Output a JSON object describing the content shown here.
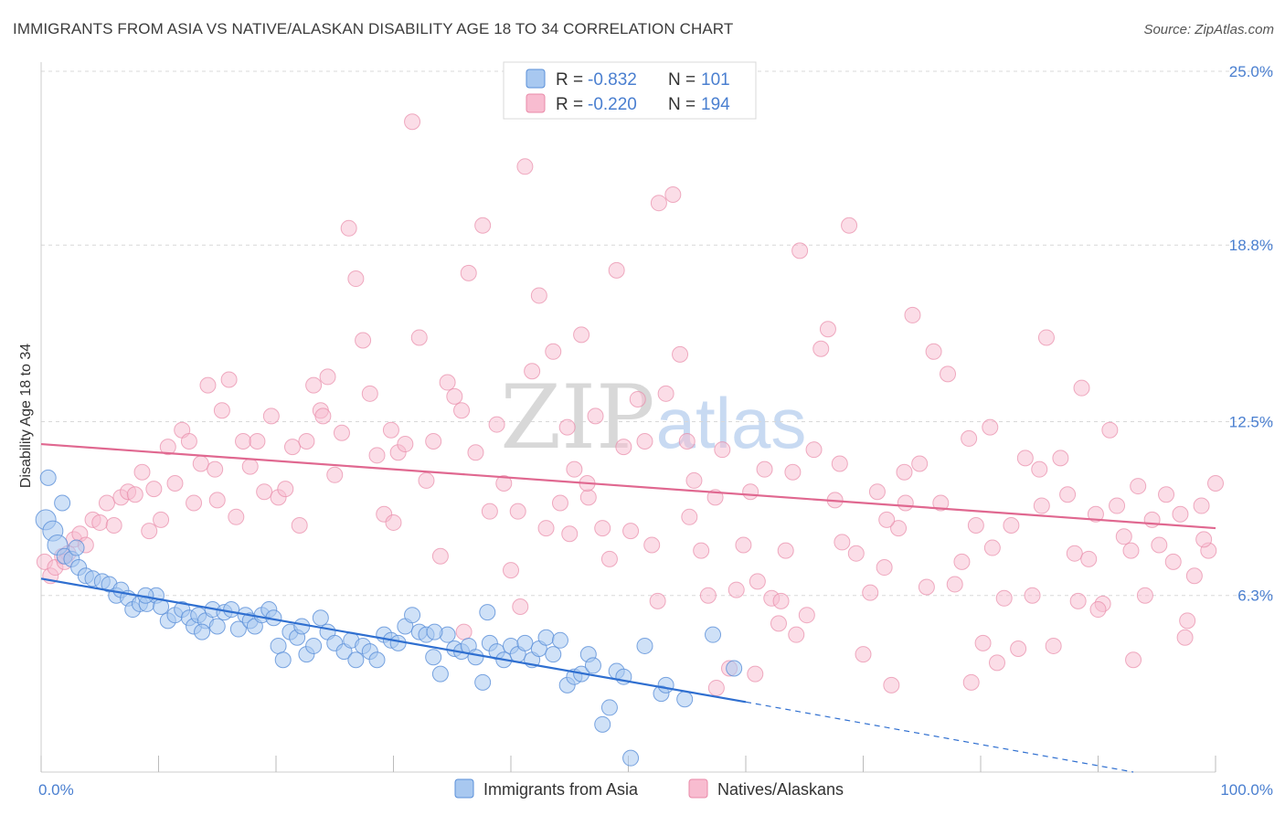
{
  "title": "IMMIGRANTS FROM ASIA VS NATIVE/ALASKAN DISABILITY AGE 18 TO 34 CORRELATION CHART",
  "source": "Source: ZipAtlas.com",
  "watermark": {
    "zip": "ZIP",
    "atlas": "atlas"
  },
  "colors": {
    "series1_fill": "#a8c8f0",
    "series1_stroke": "#5a8fd8",
    "series1_line": "#2f6fd0",
    "series2_fill": "#f8bcd0",
    "series2_stroke": "#e88aa8",
    "series2_line": "#e06890",
    "axis_text": "#4a7fd0",
    "grid": "#d8d8d8"
  },
  "legend": {
    "items": [
      {
        "r_label": "R = ",
        "r_value": "-0.832",
        "n_label": "N = ",
        "n_value": "101"
      },
      {
        "r_label": "R = ",
        "r_value": "-0.220",
        "n_label": "N = ",
        "n_value": "194"
      }
    ]
  },
  "chart_data": {
    "type": "scatter",
    "title": "IMMIGRANTS FROM ASIA VS NATIVE/ALASKAN DISABILITY AGE 18 TO 34 CORRELATION CHART",
    "xlabel": "",
    "ylabel": "Disability Age 18 to 34",
    "xlim": [
      0,
      100
    ],
    "ylim": [
      0,
      25
    ],
    "x_tick_labels": [
      "0.0%",
      "100.0%"
    ],
    "y_ticks": [
      6.3,
      12.5,
      18.8,
      25.0
    ],
    "y_tick_labels": [
      "6.3%",
      "12.5%",
      "18.8%",
      "25.0%"
    ],
    "grid": true,
    "legend_position": "top-center",
    "series": [
      {
        "name": "Immigrants from Asia",
        "trend": {
          "x0": 0,
          "y0": 6.9,
          "x1": 60,
          "y1": 2.5,
          "dashed_to_x": 93,
          "dashed_to_y": 0.0
        },
        "points": [
          [
            0.4,
            9.0
          ],
          [
            1.0,
            8.6
          ],
          [
            1.4,
            8.1
          ],
          [
            2.0,
            7.7
          ],
          [
            2.6,
            7.6
          ],
          [
            3.2,
            7.3
          ],
          [
            3.8,
            7.0
          ],
          [
            4.4,
            6.9
          ],
          [
            5.2,
            6.8
          ],
          [
            5.8,
            6.7
          ],
          [
            6.4,
            6.3
          ],
          [
            6.8,
            6.5
          ],
          [
            7.4,
            6.2
          ],
          [
            7.8,
            5.8
          ],
          [
            8.4,
            6.0
          ],
          [
            9.0,
            6.0
          ],
          [
            9.8,
            6.3
          ],
          [
            10.2,
            5.9
          ],
          [
            10.8,
            5.4
          ],
          [
            11.4,
            5.6
          ],
          [
            12.0,
            5.8
          ],
          [
            12.6,
            5.5
          ],
          [
            13.0,
            5.2
          ],
          [
            13.4,
            5.6
          ],
          [
            14.0,
            5.4
          ],
          [
            14.6,
            5.8
          ],
          [
            15.0,
            5.2
          ],
          [
            15.6,
            5.7
          ],
          [
            16.2,
            5.8
          ],
          [
            16.8,
            5.1
          ],
          [
            17.4,
            5.6
          ],
          [
            17.8,
            5.4
          ],
          [
            18.2,
            5.2
          ],
          [
            18.8,
            5.6
          ],
          [
            19.4,
            5.8
          ],
          [
            20.2,
            4.5
          ],
          [
            20.6,
            4.0
          ],
          [
            21.2,
            5.0
          ],
          [
            21.8,
            4.8
          ],
          [
            22.2,
            5.2
          ],
          [
            22.6,
            4.2
          ],
          [
            23.2,
            4.5
          ],
          [
            23.8,
            5.5
          ],
          [
            24.4,
            5.0
          ],
          [
            25.0,
            4.6
          ],
          [
            25.8,
            4.3
          ],
          [
            26.4,
            4.7
          ],
          [
            26.8,
            4.0
          ],
          [
            27.4,
            4.5
          ],
          [
            28.0,
            4.3
          ],
          [
            28.6,
            4.0
          ],
          [
            29.2,
            4.9
          ],
          [
            29.8,
            4.7
          ],
          [
            30.4,
            4.6
          ],
          [
            31.0,
            5.2
          ],
          [
            31.6,
            5.6
          ],
          [
            32.2,
            5.0
          ],
          [
            32.8,
            4.9
          ],
          [
            33.4,
            4.1
          ],
          [
            34.0,
            3.5
          ],
          [
            34.6,
            4.9
          ],
          [
            35.2,
            4.4
          ],
          [
            35.8,
            4.3
          ],
          [
            36.4,
            4.5
          ],
          [
            37.0,
            4.1
          ],
          [
            37.6,
            3.2
          ],
          [
            38.2,
            4.6
          ],
          [
            38.8,
            4.3
          ],
          [
            39.4,
            4.0
          ],
          [
            40.0,
            4.5
          ],
          [
            40.6,
            4.2
          ],
          [
            41.2,
            4.6
          ],
          [
            41.8,
            4.0
          ],
          [
            42.4,
            4.4
          ],
          [
            43.0,
            4.8
          ],
          [
            43.6,
            4.2
          ],
          [
            44.2,
            4.7
          ],
          [
            44.8,
            3.1
          ],
          [
            45.4,
            3.4
          ],
          [
            46.0,
            3.5
          ],
          [
            46.6,
            4.2
          ],
          [
            47.0,
            3.8
          ],
          [
            47.8,
            1.7
          ],
          [
            48.4,
            2.3
          ],
          [
            49.0,
            3.6
          ],
          [
            49.6,
            3.4
          ],
          [
            50.2,
            0.5
          ],
          [
            51.4,
            4.5
          ],
          [
            52.8,
            2.8
          ],
          [
            53.2,
            3.1
          ],
          [
            54.8,
            2.6
          ],
          [
            57.2,
            4.9
          ],
          [
            59.0,
            3.7
          ],
          [
            0.6,
            10.5
          ],
          [
            1.8,
            9.6
          ],
          [
            3.0,
            8.0
          ],
          [
            8.9,
            6.3
          ],
          [
            13.7,
            5.0
          ],
          [
            19.8,
            5.5
          ],
          [
            38.0,
            5.7
          ],
          [
            33.5,
            5.0
          ]
        ]
      },
      {
        "name": "Natives/Alaskans",
        "trend": {
          "x0": 0,
          "y0": 11.7,
          "x1": 100,
          "y1": 8.7
        },
        "points": [
          [
            0.3,
            7.5
          ],
          [
            0.8,
            7.0
          ],
          [
            1.2,
            7.3
          ],
          [
            1.8,
            7.7
          ],
          [
            2.3,
            7.8
          ],
          [
            2.8,
            8.3
          ],
          [
            3.3,
            8.5
          ],
          [
            3.8,
            8.1
          ],
          [
            4.4,
            9.0
          ],
          [
            5.0,
            8.9
          ],
          [
            5.6,
            9.6
          ],
          [
            6.2,
            8.8
          ],
          [
            6.8,
            9.8
          ],
          [
            7.4,
            10.0
          ],
          [
            8.0,
            9.9
          ],
          [
            8.6,
            10.7
          ],
          [
            9.2,
            8.6
          ],
          [
            9.6,
            10.1
          ],
          [
            10.2,
            9.0
          ],
          [
            10.8,
            11.6
          ],
          [
            11.4,
            10.3
          ],
          [
            12.0,
            12.2
          ],
          [
            12.6,
            11.8
          ],
          [
            13.0,
            9.6
          ],
          [
            13.6,
            11.0
          ],
          [
            14.2,
            13.8
          ],
          [
            14.8,
            10.8
          ],
          [
            15.4,
            12.9
          ],
          [
            16.0,
            14.0
          ],
          [
            16.6,
            9.1
          ],
          [
            17.2,
            11.8
          ],
          [
            17.8,
            10.9
          ],
          [
            18.4,
            11.8
          ],
          [
            19.0,
            10.0
          ],
          [
            19.6,
            12.7
          ],
          [
            20.2,
            9.8
          ],
          [
            20.8,
            10.1
          ],
          [
            21.4,
            11.6
          ],
          [
            22.0,
            8.8
          ],
          [
            22.6,
            11.8
          ],
          [
            23.2,
            13.8
          ],
          [
            23.8,
            12.9
          ],
          [
            24.4,
            14.1
          ],
          [
            25.0,
            10.6
          ],
          [
            25.6,
            12.1
          ],
          [
            26.2,
            19.4
          ],
          [
            26.8,
            17.6
          ],
          [
            27.4,
            15.4
          ],
          [
            28.0,
            13.5
          ],
          [
            28.6,
            11.3
          ],
          [
            29.2,
            9.2
          ],
          [
            29.8,
            12.2
          ],
          [
            30.4,
            11.4
          ],
          [
            31.0,
            11.7
          ],
          [
            31.6,
            23.2
          ],
          [
            32.2,
            15.5
          ],
          [
            32.8,
            10.4
          ],
          [
            33.4,
            11.8
          ],
          [
            34.0,
            7.7
          ],
          [
            34.6,
            13.9
          ],
          [
            35.2,
            13.4
          ],
          [
            35.8,
            12.9
          ],
          [
            36.4,
            17.8
          ],
          [
            37.0,
            11.4
          ],
          [
            37.6,
            19.5
          ],
          [
            38.2,
            9.3
          ],
          [
            38.8,
            12.4
          ],
          [
            39.4,
            10.3
          ],
          [
            40.0,
            7.2
          ],
          [
            40.6,
            9.3
          ],
          [
            41.2,
            21.6
          ],
          [
            41.8,
            14.3
          ],
          [
            42.4,
            17.0
          ],
          [
            43.0,
            8.7
          ],
          [
            43.6,
            15.0
          ],
          [
            44.2,
            9.6
          ],
          [
            44.8,
            12.3
          ],
          [
            45.4,
            10.8
          ],
          [
            46.0,
            15.6
          ],
          [
            46.6,
            9.8
          ],
          [
            47.2,
            12.7
          ],
          [
            47.8,
            8.7
          ],
          [
            48.4,
            7.6
          ],
          [
            49.0,
            17.9
          ],
          [
            49.6,
            11.6
          ],
          [
            50.2,
            8.6
          ],
          [
            50.8,
            13.3
          ],
          [
            51.4,
            11.8
          ],
          [
            52.0,
            8.1
          ],
          [
            52.6,
            20.3
          ],
          [
            53.2,
            13.5
          ],
          [
            53.8,
            20.6
          ],
          [
            54.4,
            14.9
          ],
          [
            55.0,
            11.8
          ],
          [
            55.6,
            10.4
          ],
          [
            56.2,
            7.9
          ],
          [
            56.8,
            6.3
          ],
          [
            57.4,
            9.8
          ],
          [
            58.0,
            11.5
          ],
          [
            58.6,
            3.7
          ],
          [
            59.2,
            6.5
          ],
          [
            59.8,
            8.1
          ],
          [
            60.4,
            10.0
          ],
          [
            61.0,
            6.8
          ],
          [
            61.6,
            10.8
          ],
          [
            62.2,
            6.2
          ],
          [
            62.8,
            5.3
          ],
          [
            63.4,
            7.9
          ],
          [
            64.0,
            10.7
          ],
          [
            64.6,
            18.6
          ],
          [
            65.2,
            5.6
          ],
          [
            65.8,
            11.5
          ],
          [
            66.4,
            15.1
          ],
          [
            67.0,
            15.8
          ],
          [
            67.6,
            9.7
          ],
          [
            68.2,
            8.2
          ],
          [
            68.8,
            19.5
          ],
          [
            69.4,
            7.8
          ],
          [
            70.0,
            4.2
          ],
          [
            70.6,
            6.4
          ],
          [
            71.2,
            10.0
          ],
          [
            71.8,
            7.3
          ],
          [
            72.4,
            3.1
          ],
          [
            73.0,
            8.7
          ],
          [
            73.6,
            9.6
          ],
          [
            74.2,
            16.3
          ],
          [
            74.8,
            11.0
          ],
          [
            75.4,
            6.6
          ],
          [
            76.0,
            15.0
          ],
          [
            76.6,
            9.6
          ],
          [
            77.2,
            14.2
          ],
          [
            77.8,
            6.7
          ],
          [
            78.4,
            7.5
          ],
          [
            79.0,
            11.9
          ],
          [
            79.6,
            8.8
          ],
          [
            80.2,
            4.6
          ],
          [
            80.8,
            12.3
          ],
          [
            81.4,
            3.9
          ],
          [
            82.0,
            6.2
          ],
          [
            82.6,
            8.8
          ],
          [
            83.2,
            4.4
          ],
          [
            83.8,
            11.2
          ],
          [
            84.4,
            6.3
          ],
          [
            85.0,
            10.8
          ],
          [
            85.6,
            15.5
          ],
          [
            86.2,
            4.5
          ],
          [
            86.8,
            11.2
          ],
          [
            87.4,
            9.9
          ],
          [
            88.0,
            7.8
          ],
          [
            88.6,
            13.7
          ],
          [
            89.2,
            7.6
          ],
          [
            89.8,
            9.2
          ],
          [
            90.4,
            6.0
          ],
          [
            91.0,
            12.2
          ],
          [
            91.6,
            9.5
          ],
          [
            92.2,
            8.4
          ],
          [
            92.8,
            7.9
          ],
          [
            93.4,
            10.2
          ],
          [
            94.0,
            6.3
          ],
          [
            94.6,
            9.0
          ],
          [
            95.2,
            8.1
          ],
          [
            95.8,
            9.9
          ],
          [
            96.4,
            7.5
          ],
          [
            97.0,
            9.2
          ],
          [
            97.6,
            5.4
          ],
          [
            98.2,
            7.0
          ],
          [
            98.8,
            9.5
          ],
          [
            99.4,
            7.9
          ],
          [
            100.0,
            10.3
          ],
          [
            2.0,
            7.5
          ],
          [
            15.0,
            9.7
          ],
          [
            24.0,
            12.7
          ],
          [
            36.0,
            5.0
          ],
          [
            45.0,
            8.5
          ],
          [
            55.2,
            9.1
          ],
          [
            60.8,
            3.5
          ],
          [
            68.0,
            11.0
          ],
          [
            72.0,
            9.0
          ],
          [
            81.0,
            8.0
          ],
          [
            90.0,
            5.8
          ],
          [
            52.5,
            6.1
          ],
          [
            64.3,
            4.9
          ],
          [
            79.2,
            3.2
          ],
          [
            85.2,
            9.5
          ],
          [
            93.0,
            4.0
          ],
          [
            99.0,
            8.3
          ],
          [
            30.0,
            8.9
          ],
          [
            40.8,
            5.9
          ],
          [
            46.5,
            10.3
          ],
          [
            57.5,
            3.0
          ],
          [
            63.0,
            6.1
          ],
          [
            73.5,
            10.7
          ],
          [
            88.3,
            6.1
          ],
          [
            97.4,
            4.8
          ]
        ]
      }
    ]
  },
  "legend_bottom": [
    "Immigrants from Asia",
    "Natives/Alaskans"
  ]
}
